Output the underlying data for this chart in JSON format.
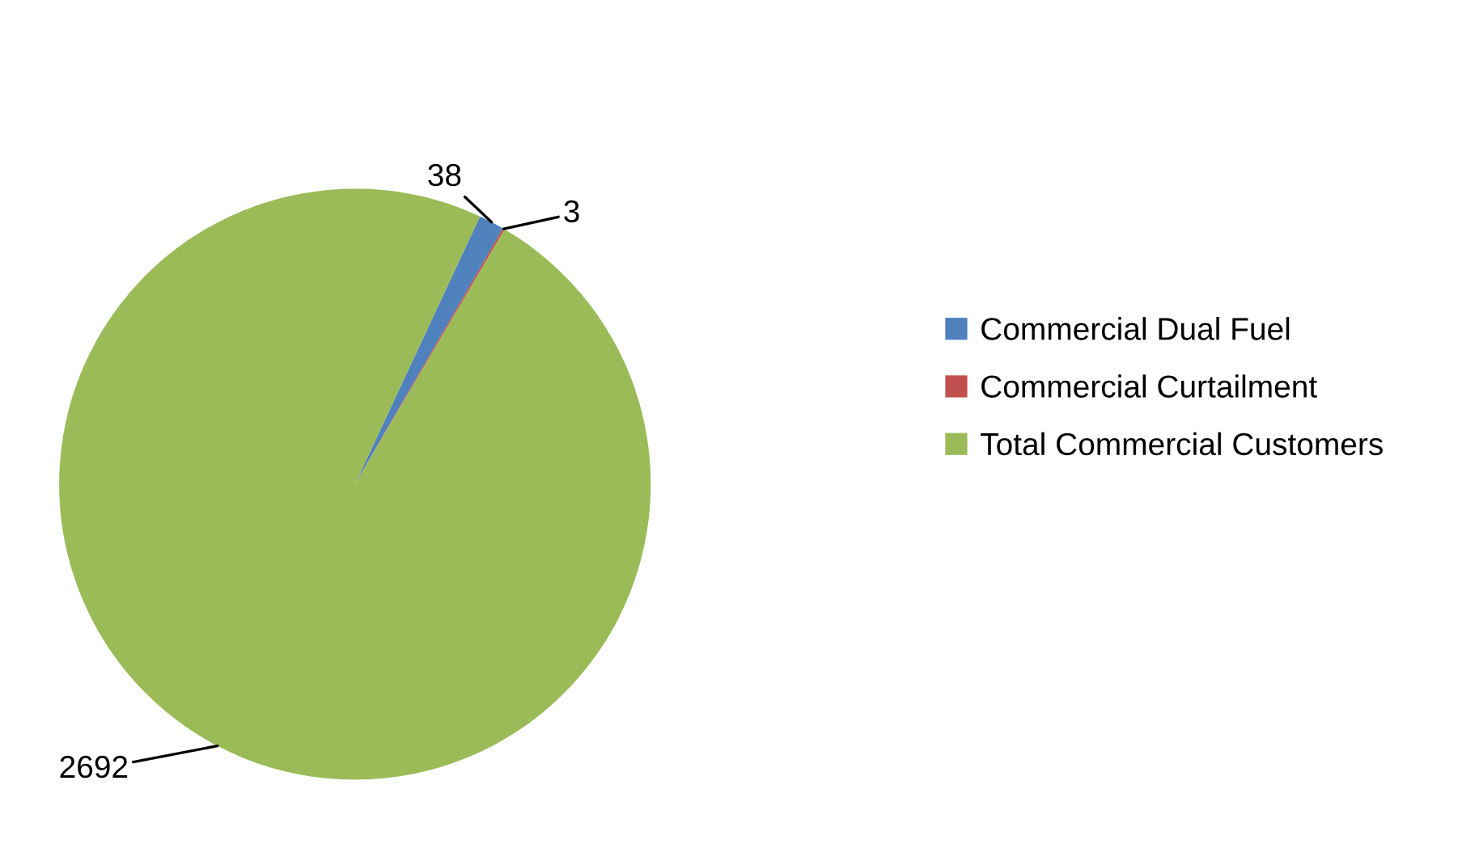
{
  "chart_data": {
    "type": "pie",
    "categories": [
      "Commercial Dual Fuel",
      "Commercial Curtailment",
      "Total Commercial Customers"
    ],
    "values": [
      38,
      3,
      2692
    ],
    "colors": [
      "#4f81bd",
      "#c0504d",
      "#9bbb59"
    ],
    "data_labels": true,
    "legend": "right"
  }
}
